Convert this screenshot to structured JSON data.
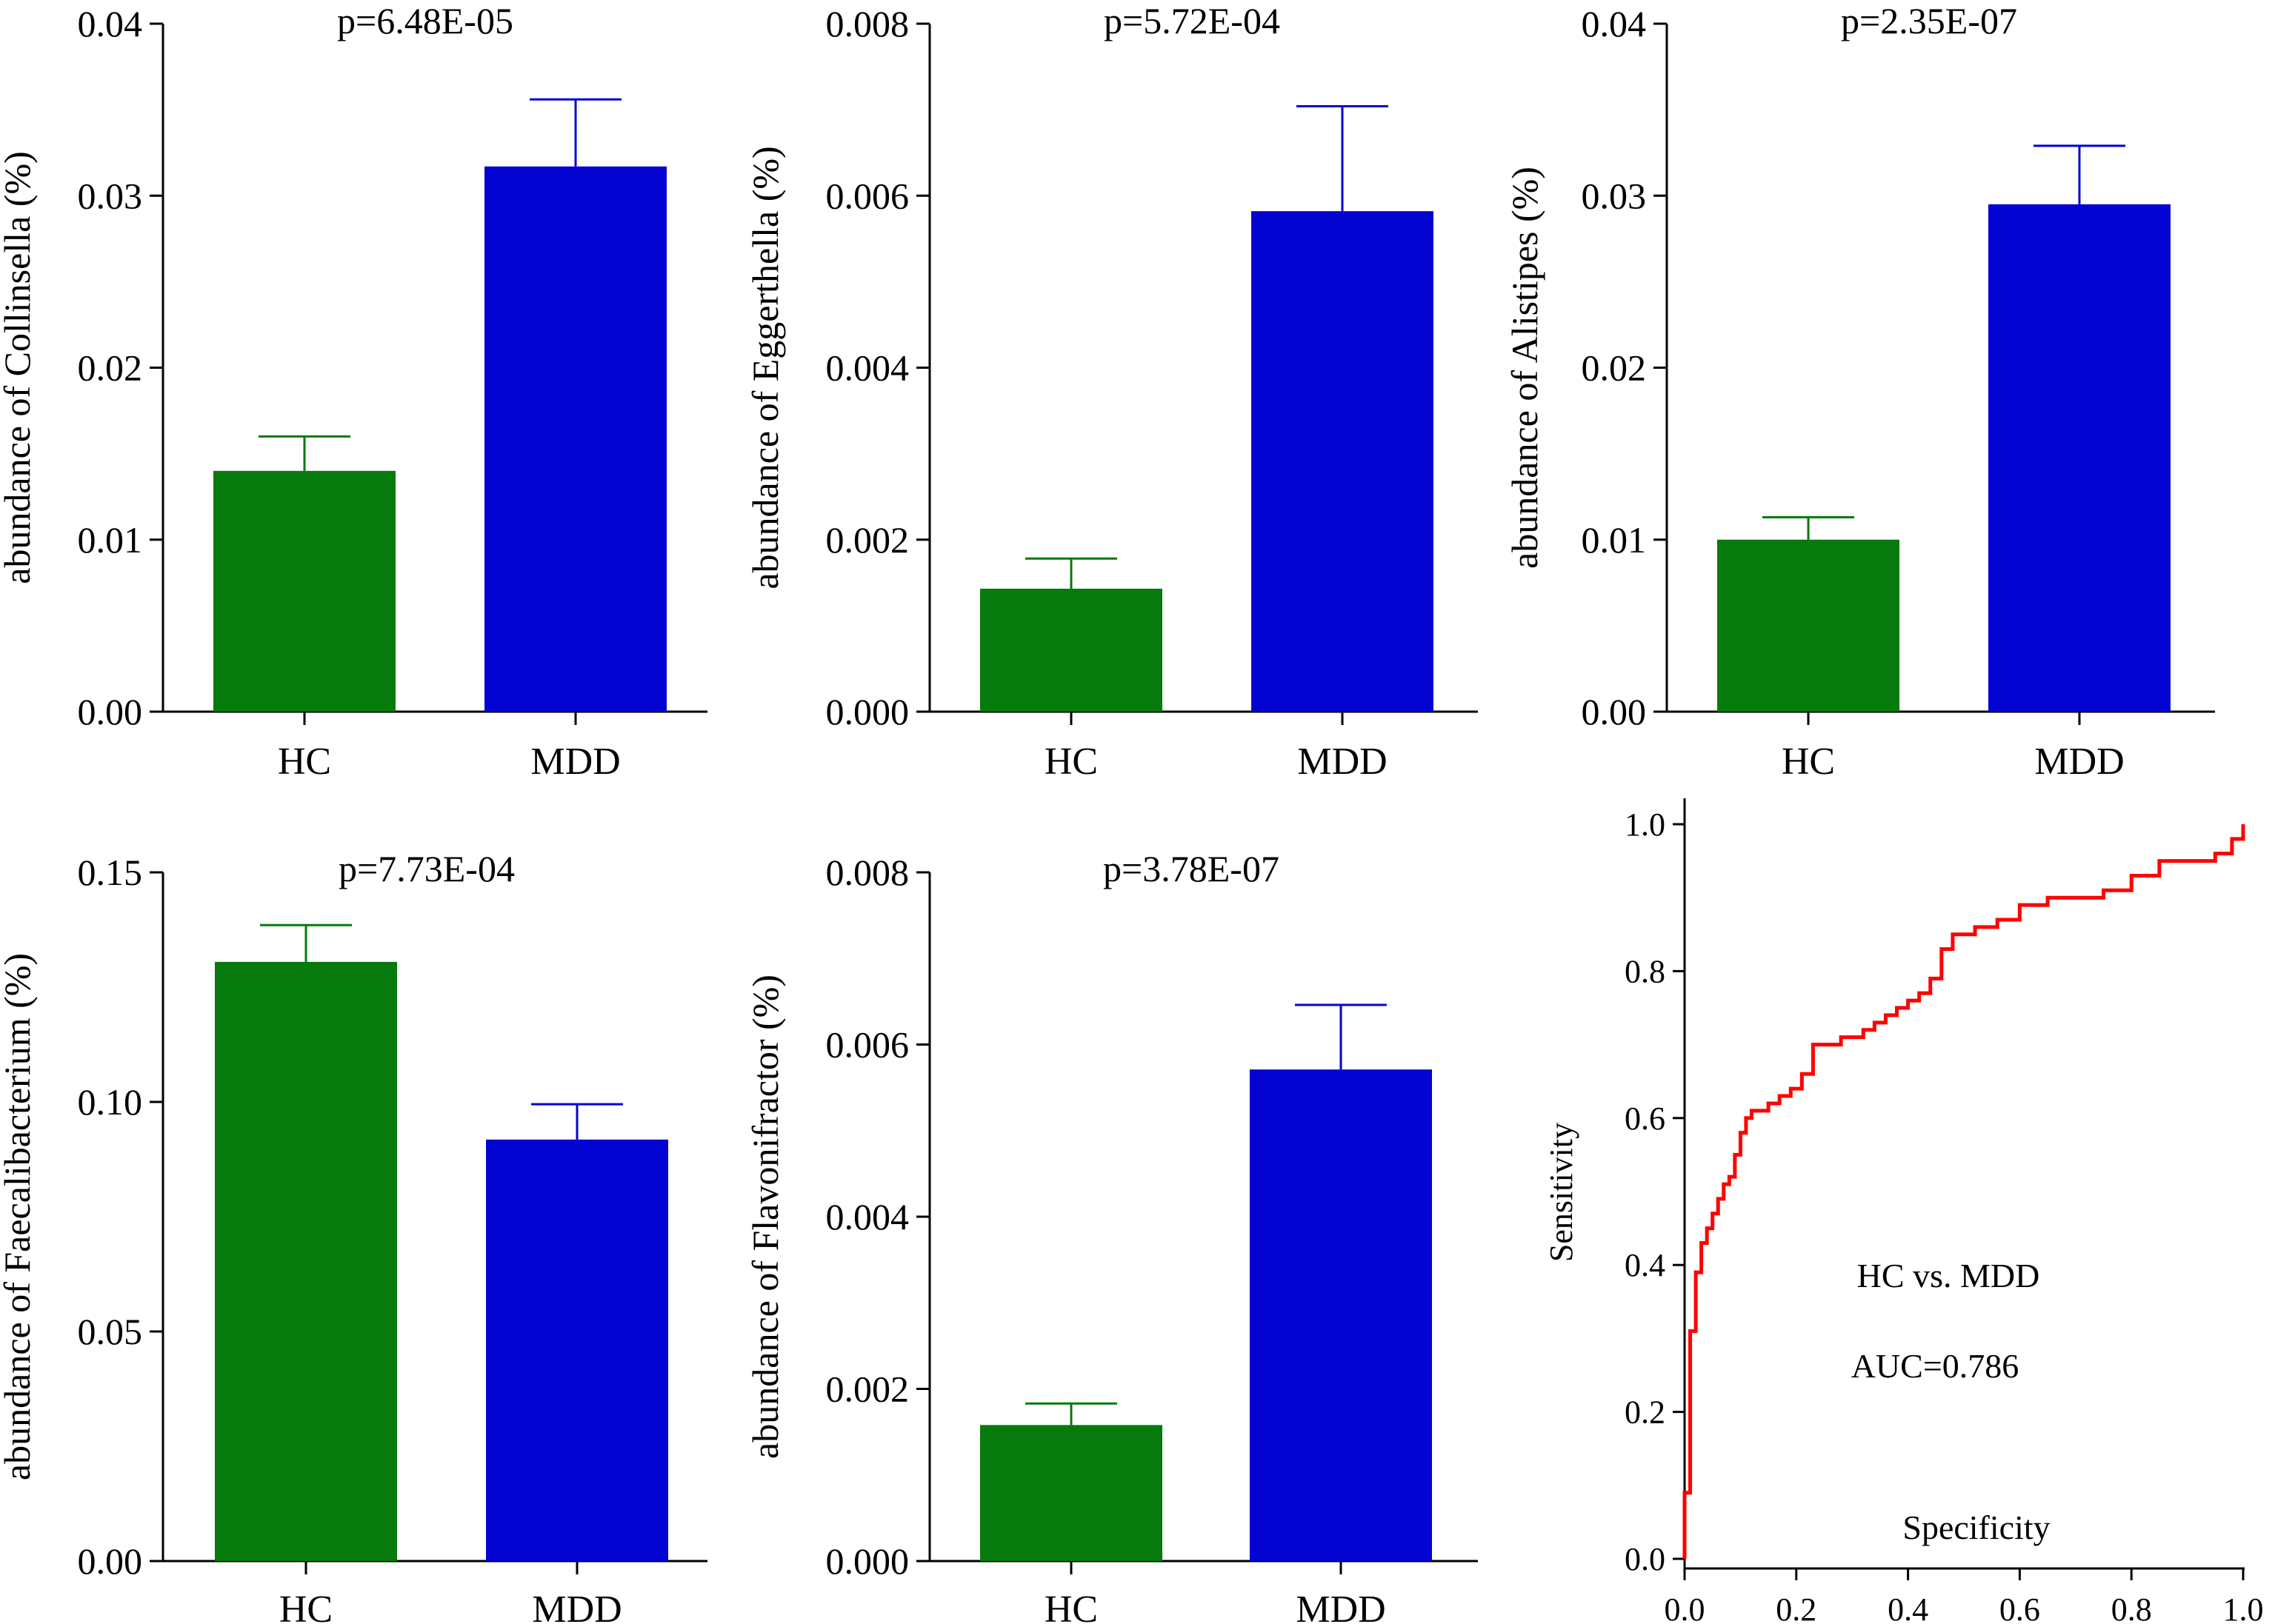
{
  "colors": {
    "hc": "#067a0c",
    "mdd": "#0303d2",
    "roc": "#ff0000",
    "axis": "#000000"
  },
  "chart_data": [
    {
      "type": "bar",
      "title": "p=6.48E-05",
      "ylabel": "abundance of Collinsella (%)",
      "categories": [
        "HC",
        "MDD"
      ],
      "values": [
        0.014,
        0.0317
      ],
      "errors": [
        0.002,
        0.0039
      ],
      "ylim": [
        0,
        0.04
      ],
      "yticks": [
        "0.00",
        "0.01",
        "0.02",
        "0.03",
        "0.04"
      ]
    },
    {
      "type": "bar",
      "title": "p=5.72E-04",
      "ylabel": "abundance of Eggerthella (%)",
      "categories": [
        "HC",
        "MDD"
      ],
      "values": [
        0.00143,
        0.00582
      ],
      "errors": [
        0.00035,
        0.00122
      ],
      "ylim": [
        0,
        0.008
      ],
      "yticks": [
        "0.000",
        "0.002",
        "0.004",
        "0.006",
        "0.008"
      ]
    },
    {
      "type": "bar",
      "title": "p=2.35E-07",
      "ylabel": "abundance of Alistipes  (%)",
      "categories": [
        "HC",
        "MDD"
      ],
      "values": [
        0.01,
        0.0295
      ],
      "errors": [
        0.0013,
        0.0034
      ],
      "ylim": [
        0,
        0.04
      ],
      "yticks": [
        "0.00",
        "0.01",
        "0.02",
        "0.03",
        "0.04"
      ]
    },
    {
      "type": "bar",
      "title": "p=7.73E-04",
      "ylabel": "abundance of Faecalibacterium (%)",
      "categories": [
        "HC",
        "MDD"
      ],
      "values": [
        0.1305,
        0.0918
      ],
      "errors": [
        0.008,
        0.0077
      ],
      "ylim": [
        0,
        0.15
      ],
      "yticks": [
        "0.00",
        "0.05",
        "0.10",
        "0.15"
      ]
    },
    {
      "type": "bar",
      "title": "p=3.78E-07",
      "ylabel": "abundance of Flavonifractor  (%)",
      "categories": [
        "HC",
        "MDD"
      ],
      "values": [
        0.00158,
        0.00571
      ],
      "errors": [
        0.00025,
        0.00075
      ],
      "ylim": [
        0,
        0.008
      ],
      "yticks": [
        "0.000",
        "0.002",
        "0.004",
        "0.006",
        "0.008"
      ]
    },
    {
      "type": "line",
      "title": "",
      "xlabel": "Specificity",
      "ylabel": "Sensitivity",
      "xlim": [
        0,
        1
      ],
      "ylim": [
        0,
        1
      ],
      "xticks": [
        "0.0",
        "0.2",
        "0.4",
        "0.6",
        "0.8",
        "1.0"
      ],
      "yticks": [
        "0.0",
        "0.2",
        "0.4",
        "0.6",
        "0.8",
        "1.0"
      ],
      "annotations": [
        "HC vs. MDD",
        "AUC=0.786"
      ],
      "series": [
        {
          "name": "ROC",
          "x": [
            0.0,
            0.0,
            0.01,
            0.01,
            0.02,
            0.02,
            0.03,
            0.03,
            0.04,
            0.05,
            0.06,
            0.07,
            0.08,
            0.09,
            0.1,
            0.11,
            0.12,
            0.13,
            0.15,
            0.17,
            0.19,
            0.21,
            0.23,
            0.23,
            0.25,
            0.28,
            0.3,
            0.32,
            0.34,
            0.36,
            0.38,
            0.4,
            0.42,
            0.44,
            0.46,
            0.48,
            0.52,
            0.56,
            0.6,
            0.65,
            0.7,
            0.75,
            0.8,
            0.85,
            0.9,
            0.95,
            0.98,
            1.0,
            1.0
          ],
          "y": [
            0.0,
            0.09,
            0.09,
            0.31,
            0.33,
            0.39,
            0.42,
            0.43,
            0.45,
            0.47,
            0.49,
            0.51,
            0.52,
            0.55,
            0.58,
            0.6,
            0.61,
            0.61,
            0.62,
            0.63,
            0.64,
            0.66,
            0.67,
            0.7,
            0.7,
            0.71,
            0.71,
            0.72,
            0.73,
            0.74,
            0.75,
            0.76,
            0.77,
            0.79,
            0.83,
            0.85,
            0.86,
            0.87,
            0.89,
            0.9,
            0.9,
            0.91,
            0.93,
            0.95,
            0.95,
            0.96,
            0.98,
            0.99,
            1.0
          ]
        }
      ]
    }
  ]
}
